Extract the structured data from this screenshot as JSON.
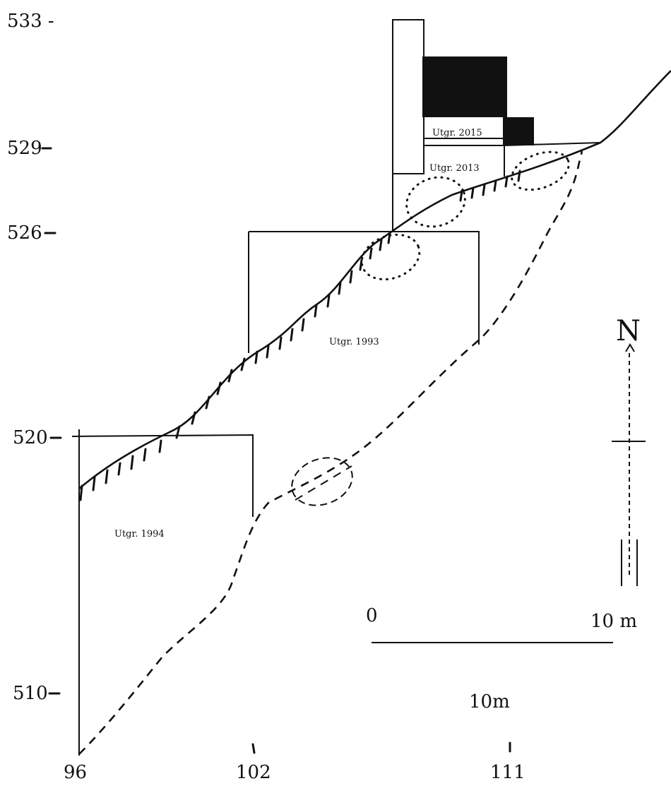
{
  "y_axis": {
    "labels": [
      {
        "id": "533",
        "text": "533 -"
      },
      {
        "id": "529",
        "text": "529"
      },
      {
        "id": "526",
        "text": "526"
      },
      {
        "id": "520",
        "text": "520"
      },
      {
        "id": "510",
        "text": "510"
      }
    ]
  },
  "x_axis": {
    "labels": [
      "96",
      "102",
      "111"
    ]
  },
  "excavation_areas": [
    {
      "id": "utgr-2015",
      "label": "Utgr. 2015"
    },
    {
      "id": "utgr-2013",
      "label": "Utgr. 2013"
    },
    {
      "id": "utgr-1993",
      "label": "Utgr. 1993"
    },
    {
      "id": "utgr-1994",
      "label": "Utgr. 1994"
    }
  ],
  "scale_bar": {
    "start_label": "0",
    "end_label": "10 m",
    "caption": "10m"
  },
  "north_arrow": {
    "label": "N"
  }
}
